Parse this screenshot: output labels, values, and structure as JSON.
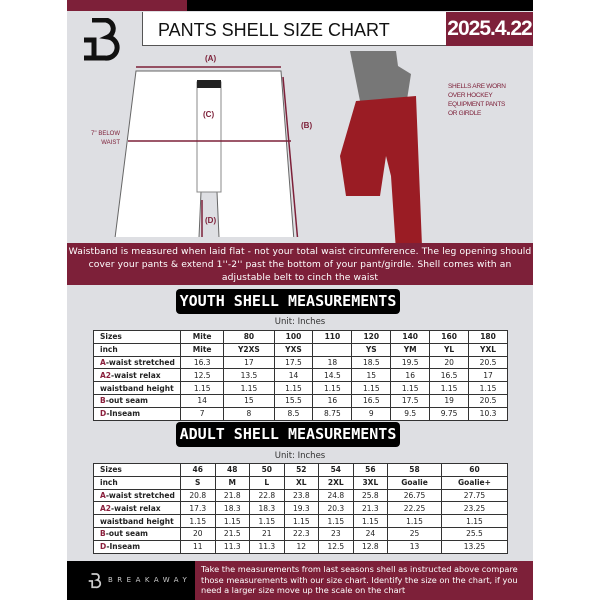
{
  "header": {
    "title": "PANTS SHELL SIZE CHART",
    "date": "2025.4.22"
  },
  "diagram": {
    "label_a": "(A)",
    "label_b": "(B)",
    "label_c": "(C)",
    "label_d": "(D)",
    "below_waist": "7'' BELOW WAIST",
    "note": "SHELLS ARE WORN OVER HOCKEY EQUIPMENT PANTS OR GIRDLE"
  },
  "info": "Waistband is measured when laid flat - not your total waist circumference. The leg opening should cover your pants & extend 1''-2'' past the bottom of your pant/girdle. Shell comes with an adjustable belt to cinch the waist",
  "youth": {
    "title": "YOUTH SHELL MEASUREMENTS",
    "unit": "Unit: Inches",
    "rows": [
      [
        "Sizes",
        "Mite",
        "80",
        "100",
        "110",
        "120",
        "140",
        "160",
        "180"
      ],
      [
        "inch",
        "Mite",
        "Y2XS",
        "YXS",
        "",
        "YS",
        "YM",
        "YL",
        "YXL"
      ],
      [
        "A|-waist stretched",
        "16.3",
        "17",
        "17.5",
        "18",
        "18.5",
        "19.5",
        "20",
        "20.5"
      ],
      [
        "A2|-waist relax",
        "12.5",
        "13.5",
        "14",
        "14.5",
        "15",
        "16",
        "16.5",
        "17"
      ],
      [
        "waistband height",
        "1.15",
        "1.15",
        "1.15",
        "1.15",
        "1.15",
        "1.15",
        "1.15",
        "1.15"
      ],
      [
        "B|-out seam",
        "14",
        "15",
        "15.5",
        "16",
        "16.5",
        "17.5",
        "19",
        "20.5"
      ],
      [
        "D|-Inseam",
        "7",
        "8",
        "8.5",
        "8.75",
        "9",
        "9.5",
        "9.75",
        "10.3"
      ]
    ]
  },
  "adult": {
    "title": "ADULT SHELL MEASUREMENTS",
    "unit": "Unit: Inches",
    "rows": [
      [
        "Sizes",
        "46",
        "48",
        "50",
        "52",
        "54",
        "56",
        "58",
        "60"
      ],
      [
        "inch",
        "S",
        "M",
        "L",
        "XL",
        "2XL",
        "3XL",
        "Goalie",
        "Goalie+"
      ],
      [
        "A|-waist stretched",
        "20.8",
        "21.8",
        "22.8",
        "23.8",
        "24.8",
        "25.8",
        "26.75",
        "27.75"
      ],
      [
        "A2|-waist relax",
        "17.3",
        "18.3",
        "18.3",
        "19.3",
        "20.3",
        "21.3",
        "22.25",
        "23.25"
      ],
      [
        "waistband height",
        "1.15",
        "1.15",
        "1.15",
        "1.15",
        "1.15",
        "1.15",
        "1.15",
        "1.15"
      ],
      [
        "B|-out seam",
        "20",
        "21.5",
        "21",
        "22.3",
        "23",
        "24",
        "25",
        "25.5"
      ],
      [
        "D|-Inseam",
        "11",
        "11.3",
        "11.3",
        "12",
        "12.5",
        "12.8",
        "13",
        "13.25"
      ]
    ]
  },
  "footer": {
    "brand": "BREAKAWAY",
    "text": "Take the measurements from last seasons shell as instructed above compare those measurements  with our size chart. Identify the size on the chart, if you need a larger size move up the scale on the chart"
  },
  "colors": {
    "accent": "#7d2039",
    "panel": "#dedfe3"
  }
}
